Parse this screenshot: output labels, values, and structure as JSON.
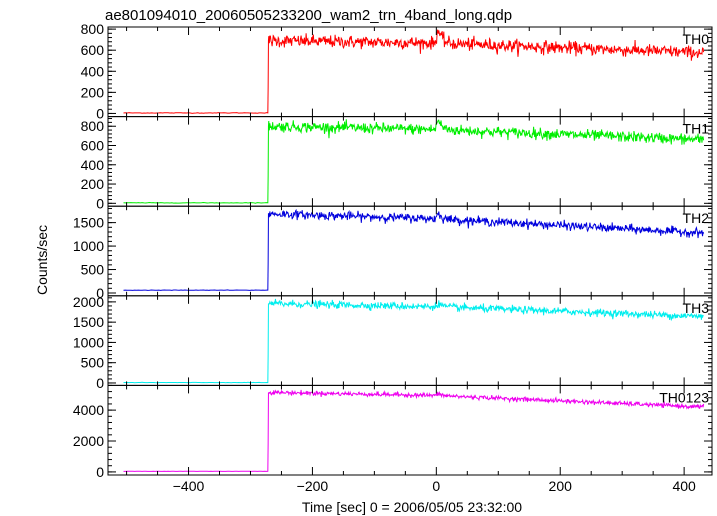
{
  "title": "ae801094010_20060505233200_wam2_trn_4band_long.qdp",
  "ylabel": "Counts/sec",
  "xlabel": "Time [sec] 0 = 2006/05/05 23:32:00",
  "xlim": [
    -530,
    445
  ],
  "x_ticks": [
    -400,
    -200,
    0,
    200,
    400
  ],
  "x_ticks_labels": [
    "−400",
    "−200",
    "0",
    "200",
    "400"
  ],
  "trigger_time": -272,
  "start_time": -505,
  "end_time": 432,
  "chart_data": [
    {
      "type": "line",
      "panel": "TH0",
      "series": [
        {
          "name": "TH0",
          "color": "#ff0000"
        }
      ],
      "ylim": [
        -30,
        820
      ],
      "y_ticks": [
        0,
        200,
        400,
        600,
        800
      ],
      "baseline": 5,
      "pre_peak": 690,
      "spike": [
        3,
        800
      ],
      "post_peak_start": 650,
      "end": 575,
      "noise": 30
    },
    {
      "type": "line",
      "panel": "TH1",
      "series": [
        {
          "name": "TH1",
          "color": "#00ee00"
        }
      ],
      "ylim": [
        -30,
        900
      ],
      "y_ticks": [
        0,
        200,
        400,
        600,
        800
      ],
      "baseline": 5,
      "pre_peak": 800,
      "spike": [
        3,
        870
      ],
      "post_peak_start": 740,
      "end": 660,
      "noise": 28
    },
    {
      "type": "line",
      "panel": "TH2",
      "series": [
        {
          "name": "TH2",
          "color": "#0000dd"
        }
      ],
      "ylim": [
        -60,
        1850
      ],
      "y_ticks": [
        0,
        500,
        1000,
        1500
      ],
      "baseline": 60,
      "pre_peak": 1690,
      "spike": [
        3,
        1700
      ],
      "post_peak_start": 1500,
      "end": 1280,
      "noise": 45
    },
    {
      "type": "line",
      "panel": "TH3",
      "series": [
        {
          "name": "TH3",
          "color": "#00eeee"
        }
      ],
      "ylim": [
        -60,
        2150
      ],
      "y_ticks": [
        0,
        500,
        1000,
        1500,
        2000
      ],
      "baseline": 10,
      "pre_peak": 1960,
      "spike": [
        3,
        1980
      ],
      "post_peak_start": 1820,
      "end": 1640,
      "noise": 45
    },
    {
      "type": "line",
      "panel": "TH0123",
      "series": [
        {
          "name": "TH0123",
          "color": "#ee00ee"
        }
      ],
      "ylim": [
        -200,
        5600
      ],
      "y_ticks": [
        0,
        2000,
        4000
      ],
      "baseline": 40,
      "pre_peak": 5150,
      "spike": [
        3,
        5050
      ],
      "post_peak_start": 4800,
      "end": 4200,
      "noise": 70
    }
  ]
}
